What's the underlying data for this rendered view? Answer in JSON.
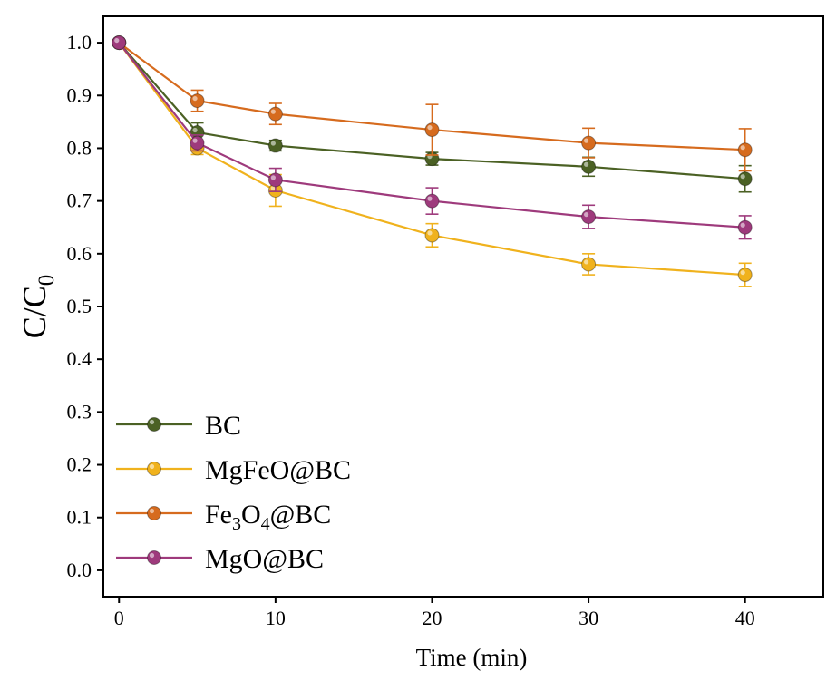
{
  "chart_data": {
    "type": "line",
    "title": "",
    "xlabel": "Time (min)",
    "ylabel": {
      "main": "C/C",
      "sub": "0"
    },
    "xlim": [
      -1,
      45
    ],
    "ylim": [
      -0.05,
      1.05
    ],
    "x_ticks": [
      0,
      10,
      20,
      30,
      40
    ],
    "x_tick_labels": [
      "0",
      "10",
      "20",
      "30",
      "40"
    ],
    "y_ticks": [
      0.0,
      0.1,
      0.2,
      0.3,
      0.4,
      0.5,
      0.6,
      0.7,
      0.8,
      0.9,
      1.0
    ],
    "y_tick_labels": [
      "0.0",
      "0.1",
      "0.2",
      "0.3",
      "0.4",
      "0.5",
      "0.6",
      "0.7",
      "0.8",
      "0.9",
      "1.0"
    ],
    "grid": false,
    "legend_position": "bottom-left",
    "x": [
      0,
      5,
      10,
      20,
      30,
      40
    ],
    "series": [
      {
        "name": "BC",
        "legend_parts": [
          {
            "t": "BC",
            "sub": false
          }
        ],
        "color": "#4b6124",
        "values": [
          1.0,
          0.83,
          0.805,
          0.78,
          0.765,
          0.742
        ],
        "errors": [
          0.0,
          0.018,
          0.01,
          0.012,
          0.018,
          0.025
        ]
      },
      {
        "name": "MgFeO@BC",
        "legend_parts": [
          {
            "t": "MgFeO@BC",
            "sub": false
          }
        ],
        "color": "#f0b21d",
        "values": [
          1.0,
          0.8,
          0.72,
          0.635,
          0.58,
          0.56
        ],
        "errors": [
          0.0,
          0.012,
          0.03,
          0.022,
          0.02,
          0.022
        ]
      },
      {
        "name": "Fe3O4@BC",
        "legend_parts": [
          {
            "t": "Fe",
            "sub": false
          },
          {
            "t": "3",
            "sub": true
          },
          {
            "t": "O",
            "sub": false
          },
          {
            "t": "4",
            "sub": true
          },
          {
            "t": "@BC",
            "sub": false
          }
        ],
        "color": "#d66b1e",
        "values": [
          1.0,
          0.89,
          0.865,
          0.835,
          0.81,
          0.797
        ],
        "errors": [
          0.0,
          0.02,
          0.02,
          0.048,
          0.028,
          0.04
        ]
      },
      {
        "name": "MgO@BC",
        "legend_parts": [
          {
            "t": "MgO@BC",
            "sub": false
          }
        ],
        "color": "#9e3a7c",
        "values": [
          1.0,
          0.81,
          0.74,
          0.7,
          0.67,
          0.65
        ],
        "errors": [
          0.0,
          0.015,
          0.022,
          0.025,
          0.022,
          0.022
        ]
      }
    ]
  }
}
